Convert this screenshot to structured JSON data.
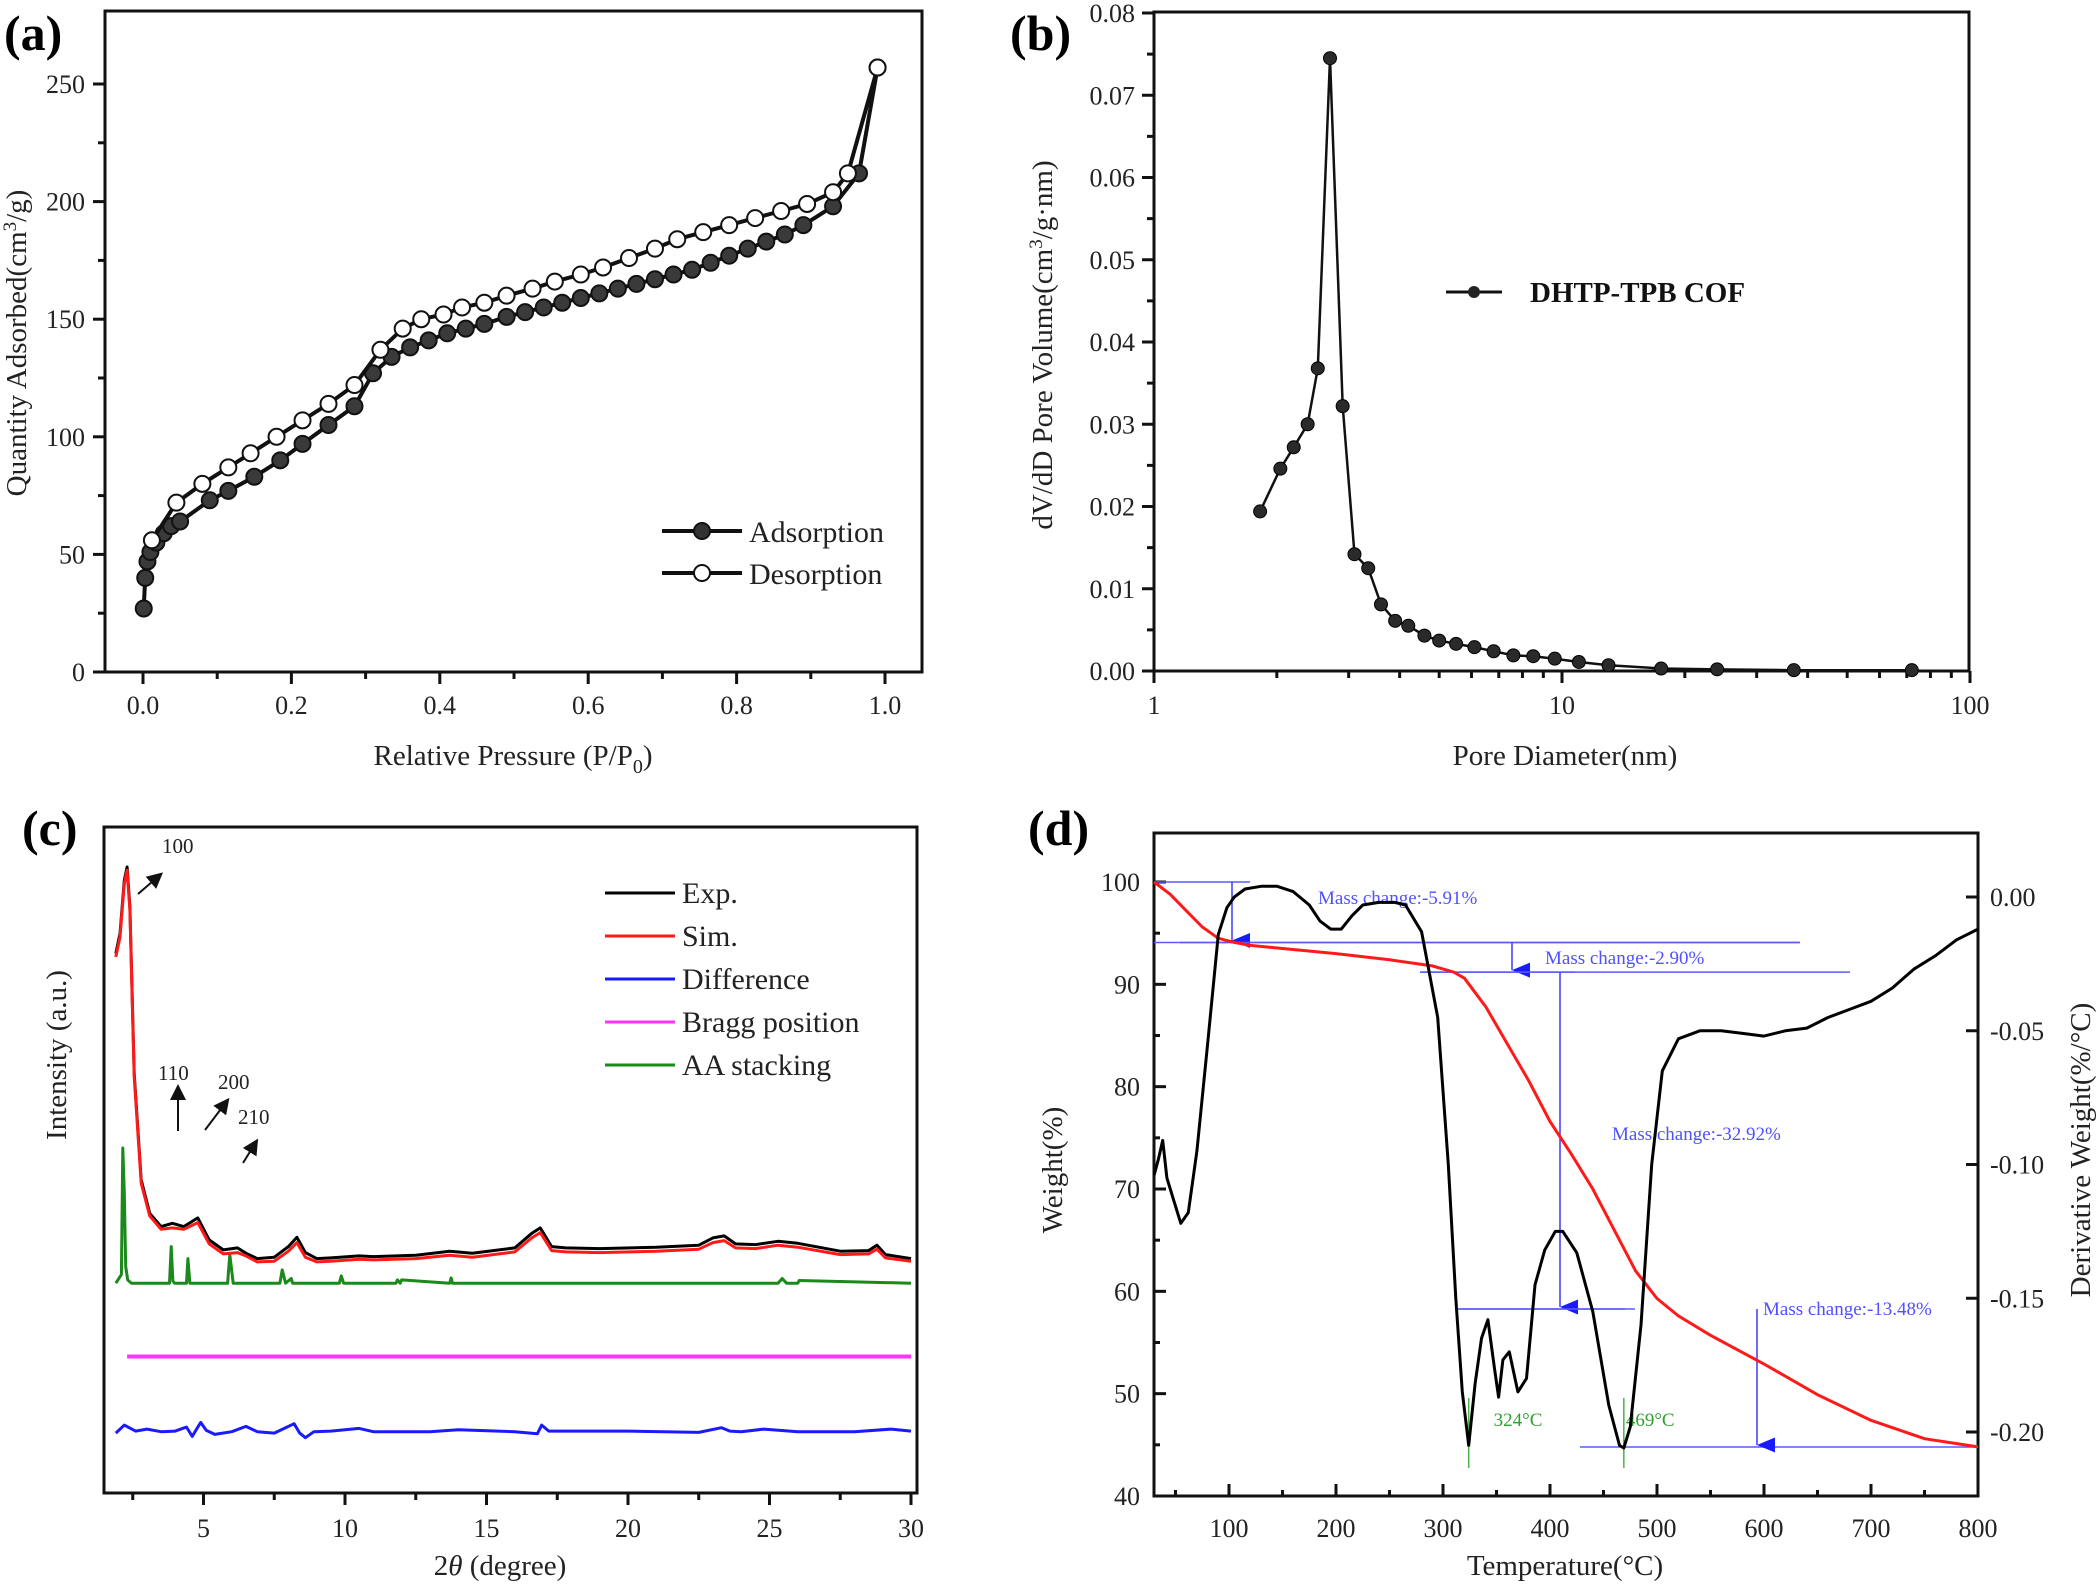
{
  "figure": {
    "panel_labels": [
      "(a)",
      "(b)",
      "(c)",
      "(d)"
    ]
  },
  "chart_data": [
    {
      "id": "a",
      "type": "line",
      "title": "",
      "xlabel": "Relative Pressure (P/P0)",
      "xlabel_main": "Relative Pressure (P/P",
      "xlabel_sub": "0",
      "xlabel_tail": ")",
      "ylabel": "Quantity Adsorbed(cm3/g)",
      "ylabel_main": "Quantity Adsorbed(cm",
      "ylabel_sup": "3",
      "ylabel_tail": "/g)",
      "xlim": [
        -0.065,
        1.045
      ],
      "ylim": [
        0,
        272
      ],
      "xticks": [
        0.0,
        0.2,
        0.4,
        0.6,
        0.8,
        1.0
      ],
      "xtick_labels": [
        "0.0",
        "0.2",
        "0.4",
        "0.6",
        "0.8",
        "1.0"
      ],
      "yticks": [
        0,
        50,
        100,
        150,
        200,
        250
      ],
      "ytick_labels": [
        "0",
        "50",
        "100",
        "150",
        "200",
        "250"
      ],
      "legend_position": "bottom-right",
      "series": [
        {
          "name": "Adsorption",
          "marker": "filled-circle",
          "x": [
            0.001,
            0.003,
            0.006,
            0.01,
            0.018,
            0.028,
            0.038,
            0.05,
            0.09,
            0.115,
            0.15,
            0.185,
            0.215,
            0.25,
            0.285,
            0.31,
            0.335,
            0.36,
            0.385,
            0.41,
            0.435,
            0.46,
            0.49,
            0.515,
            0.54,
            0.565,
            0.59,
            0.615,
            0.64,
            0.665,
            0.69,
            0.715,
            0.74,
            0.765,
            0.79,
            0.815,
            0.84,
            0.865,
            0.89,
            0.93,
            0.965,
            0.99
          ],
          "y": [
            27,
            40,
            47,
            51,
            55,
            59,
            62,
            64,
            73,
            77,
            83,
            90,
            97,
            105,
            113,
            127,
            134,
            138,
            141,
            144,
            146,
            148,
            151,
            153,
            155,
            157,
            159,
            161,
            163,
            165,
            167,
            169,
            171,
            174,
            177,
            180,
            183,
            186,
            190,
            198,
            212,
            257
          ]
        },
        {
          "name": "Desorption",
          "marker": "open-circle",
          "x": [
            0.99,
            0.95,
            0.93,
            0.895,
            0.86,
            0.825,
            0.79,
            0.755,
            0.72,
            0.69,
            0.655,
            0.62,
            0.59,
            0.555,
            0.525,
            0.49,
            0.46,
            0.43,
            0.405,
            0.375,
            0.35,
            0.32,
            0.285,
            0.25,
            0.215,
            0.18,
            0.145,
            0.115,
            0.08,
            0.045,
            0.012
          ],
          "y": [
            257,
            212,
            204,
            199,
            196,
            193,
            190,
            187,
            184,
            180,
            176,
            172,
            169,
            166,
            163,
            160,
            157,
            155,
            152,
            150,
            146,
            137,
            122,
            114,
            107,
            100,
            93,
            87,
            80,
            72,
            56
          ]
        }
      ]
    },
    {
      "id": "b",
      "type": "line",
      "title": "",
      "xlabel": "Pore Diameter(nm)",
      "ylabel": "dV/dD Pore Volume(cm3/g·nm)",
      "ylabel_main": "dV/dD Pore Volume(cm",
      "ylabel_sup": "3",
      "ylabel_tail": "/g·nm)",
      "xscale": "log",
      "xlim": [
        1,
        100
      ],
      "ylim": [
        0,
        0.08
      ],
      "xticks": [
        1,
        10,
        100
      ],
      "xtick_labels": [
        "1",
        "10",
        "100"
      ],
      "yticks": [
        0.0,
        0.01,
        0.02,
        0.03,
        0.04,
        0.05,
        0.06,
        0.07,
        0.08
      ],
      "ytick_labels": [
        "0.00",
        "0.01",
        "0.02",
        "0.03",
        "0.04",
        "0.05",
        "0.06",
        "0.07",
        "0.08"
      ],
      "legend_position": "center-right",
      "series": [
        {
          "name": "DHTP-TPB COF",
          "marker": "filled-circle",
          "x": [
            1.82,
            2.04,
            2.2,
            2.38,
            2.52,
            2.7,
            2.9,
            3.1,
            3.35,
            3.6,
            3.9,
            4.2,
            4.6,
            5.0,
            5.5,
            6.1,
            6.8,
            7.6,
            8.5,
            9.6,
            11.0,
            13.0,
            17.5,
            24.0,
            37.0,
            72.0
          ],
          "y": [
            0.0194,
            0.0246,
            0.0272,
            0.03,
            0.0368,
            0.0745,
            0.0322,
            0.0142,
            0.0125,
            0.0081,
            0.0061,
            0.0055,
            0.0043,
            0.0037,
            0.0033,
            0.0029,
            0.0024,
            0.0019,
            0.0018,
            0.0015,
            0.0011,
            0.0007,
            0.0003,
            0.0002,
            0.0001,
            0.0001
          ]
        }
      ]
    },
    {
      "id": "c",
      "type": "line",
      "title": "",
      "xlabel": "2θ (degree)",
      "xlabel_theta": "θ",
      "xlabel_pre": "2",
      "xlabel_post": " (degree)",
      "ylabel": "Intensity (a.u.)",
      "xlim": [
        1.5,
        31.2
      ],
      "ylim": [
        0,
        100
      ],
      "xticks": [
        5,
        10,
        15,
        20,
        25,
        30
      ],
      "xtick_labels": [
        "5",
        "10",
        "15",
        "20",
        "25",
        "30"
      ],
      "legend_position": "top-right",
      "peak_annotations": [
        {
          "label": "100",
          "x": 2.3
        },
        {
          "label": "110",
          "x": 3.9
        },
        {
          "label": "200",
          "x": 4.8
        },
        {
          "label": "210",
          "x": 6.4
        }
      ],
      "series": [
        {
          "name": "Exp.",
          "color": "#000000",
          "x": [
            1.9,
            2.05,
            2.2,
            2.3,
            2.4,
            2.55,
            2.8,
            3.1,
            3.5,
            3.9,
            4.3,
            4.8,
            5.2,
            5.7,
            6.2,
            6.5,
            6.9,
            7.5,
            8.0,
            8.3,
            8.6,
            9.0,
            9.5,
            10.5,
            11.0,
            12.5,
            13.7,
            14.5,
            16.0,
            16.6,
            16.9,
            17.3,
            17.8,
            19.0,
            21.0,
            22.5,
            23.0,
            23.4,
            23.8,
            24.5,
            25.3,
            26.0,
            27.5,
            28.5,
            28.8,
            29.1,
            30.0
          ],
          "y": [
            81,
            84,
            92,
            94,
            88,
            63,
            47,
            42,
            40,
            40.5,
            40,
            41.3,
            38,
            36.5,
            36.8,
            36,
            35.2,
            35.4,
            37,
            38.4,
            36.1,
            35.2,
            35.3,
            35.6,
            35.5,
            35.7,
            36.3,
            36,
            36.8,
            39,
            39.8,
            37,
            36.8,
            36.7,
            36.9,
            37.2,
            38.3,
            38.6,
            37.4,
            37.3,
            37.8,
            37.5,
            36.3,
            36.4,
            37.2,
            35.8,
            35.2
          ]
        },
        {
          "name": "Sim.",
          "color": "#ff1a1a",
          "x": [
            1.9,
            2.05,
            2.2,
            2.3,
            2.4,
            2.55,
            2.8,
            3.1,
            3.5,
            3.9,
            4.3,
            4.8,
            5.2,
            5.7,
            6.2,
            6.5,
            6.9,
            7.5,
            8.0,
            8.3,
            8.6,
            9.0,
            9.5,
            10.5,
            11.0,
            12.5,
            13.7,
            14.5,
            16.0,
            16.6,
            16.9,
            17.3,
            17.8,
            19.0,
            21.0,
            22.5,
            23.0,
            23.4,
            23.8,
            24.5,
            25.3,
            26.0,
            27.5,
            28.5,
            28.8,
            29.1,
            30.0
          ],
          "y": [
            80.5,
            83.5,
            91.5,
            93.5,
            87.5,
            62.5,
            46.5,
            41.6,
            39.6,
            39.8,
            39.6,
            40.6,
            37.4,
            35.9,
            36.1,
            35.6,
            34.7,
            34.8,
            36.3,
            37.6,
            35.4,
            34.7,
            34.8,
            35.1,
            35.0,
            35.2,
            35.7,
            35.4,
            36.2,
            38.3,
            39.1,
            36.4,
            36.2,
            36.1,
            36.3,
            36.6,
            37.6,
            37.9,
            36.8,
            36.7,
            37.2,
            36.9,
            35.8,
            35.9,
            36.6,
            35.3,
            34.8
          ]
        },
        {
          "name": "Difference",
          "color": "#1a1aff",
          "x": [
            1.9,
            2.2,
            2.6,
            3.0,
            3.5,
            4.0,
            4.4,
            4.6,
            4.9,
            5.1,
            5.4,
            6.0,
            6.5,
            6.9,
            7.5,
            8.2,
            8.4,
            8.6,
            8.9,
            9.5,
            10.5,
            11.0,
            13.0,
            14.0,
            16.0,
            16.8,
            16.95,
            17.2,
            18.0,
            20.0,
            22.5,
            23.3,
            23.6,
            24.0,
            24.8,
            26.0,
            28.0,
            29.3,
            30.0
          ],
          "y": [
            9.0,
            10.2,
            9.3,
            9.6,
            9.2,
            9.3,
            9.9,
            8.5,
            10.6,
            9.4,
            8.8,
            9.2,
            10.0,
            9.2,
            9.0,
            10.4,
            9.0,
            8.3,
            9.2,
            9.3,
            9.7,
            9.2,
            9.2,
            9.5,
            9.2,
            8.9,
            10.2,
            9.3,
            9.3,
            9.3,
            9.1,
            9.8,
            9.3,
            9.2,
            9.6,
            9.2,
            9.2,
            9.6,
            9.3
          ]
        },
        {
          "name": "Bragg position",
          "color": "#ff33ff",
          "x": [
            2.3,
            30.0
          ],
          "y": [
            20.5,
            20.5
          ]
        },
        {
          "name": "AA stacking",
          "color": "#1a8a1a",
          "x": [
            1.9,
            2.1,
            2.15,
            2.2,
            2.25,
            2.32,
            2.45,
            3.8,
            3.86,
            3.92,
            3.98,
            4.4,
            4.45,
            4.52,
            5.85,
            5.93,
            6.05,
            7.7,
            7.78,
            7.9,
            8.1,
            8.15,
            9.8,
            9.87,
            9.95,
            11.8,
            11.85,
            11.95,
            12.0,
            13.7,
            13.75,
            13.8,
            25.3,
            25.45,
            25.6,
            26.0,
            26.05,
            30.0
          ],
          "y": [
            31.5,
            32.8,
            51.8,
            45,
            34,
            32,
            31.5,
            31.5,
            37,
            31.8,
            31.5,
            31.5,
            35.2,
            31.5,
            31.5,
            35.8,
            31.5,
            31.5,
            33.5,
            31.5,
            32.2,
            31.5,
            31.5,
            32.6,
            31.5,
            31.5,
            32,
            31.5,
            32,
            31.5,
            32.3,
            31.5,
            31.5,
            32.2,
            31.5,
            31.5,
            31.9,
            31.5
          ]
        }
      ]
    },
    {
      "id": "d",
      "type": "line",
      "title": "",
      "xlabel": "Temperature(°C)",
      "ylabel_left": "Weight(%)",
      "ylabel_right": "Derivative Weight(%/°C)",
      "xlim": [
        30,
        800
      ],
      "ylim_left": [
        40,
        105
      ],
      "ylim_right": [
        -0.222,
        0.012
      ],
      "xticks": [
        100,
        200,
        300,
        400,
        500,
        600,
        700,
        800
      ],
      "xtick_labels": [
        "100",
        "200",
        "300",
        "400",
        "500",
        "600",
        "700",
        "800"
      ],
      "yticks_left": [
        40,
        50,
        60,
        70,
        80,
        90,
        100
      ],
      "ytick_labels_left": [
        "40",
        "50",
        "60",
        "70",
        "80",
        "90",
        "100"
      ],
      "yticks_right": [
        0.0,
        -0.05,
        -0.1,
        -0.15,
        -0.2
      ],
      "ytick_labels_right": [
        "0.00",
        "-0.05",
        "-0.10",
        "-0.15",
        "-0.20"
      ],
      "series": [
        {
          "name": "Weight",
          "axis": "left",
          "color": "#ff1a1a",
          "x": [
            30,
            45,
            60,
            75,
            90,
            105,
            120,
            150,
            200,
            250,
            290,
            310,
            320,
            340,
            360,
            380,
            400,
            420,
            440,
            460,
            480,
            500,
            520,
            550,
            600,
            650,
            700,
            750,
            800
          ],
          "y": [
            100,
            98.8,
            97.2,
            95.6,
            94.5,
            94.1,
            93.8,
            93.5,
            93.0,
            92.4,
            91.8,
            91.2,
            90.6,
            87.8,
            84.2,
            80.6,
            76.6,
            73.4,
            70.0,
            66.0,
            62.0,
            59.3,
            57.6,
            55.7,
            52.9,
            49.9,
            47.4,
            45.6,
            44.8
          ]
        },
        {
          "name": "Derivative Weight",
          "axis": "right",
          "color": "#000000",
          "x": [
            30,
            34,
            38,
            42,
            48,
            55,
            62,
            70,
            80,
            90,
            98,
            105,
            115,
            130,
            145,
            160,
            175,
            185,
            195,
            205,
            215,
            225,
            240,
            255,
            265,
            280,
            295,
            305,
            312,
            318,
            324,
            330,
            336,
            342,
            348,
            352,
            356,
            362,
            370,
            378,
            386,
            395,
            405,
            412,
            425,
            440,
            455,
            465,
            469,
            475,
            485,
            495,
            505,
            520,
            540,
            560,
            580,
            600,
            620,
            640,
            660,
            680,
            700,
            720,
            740,
            760,
            780,
            800
          ],
          "y": [
            -0.104,
            -0.098,
            -0.091,
            -0.105,
            -0.113,
            -0.122,
            -0.118,
            -0.095,
            -0.055,
            -0.014,
            -0.004,
            0.0,
            0.003,
            0.004,
            0.004,
            0.002,
            -0.003,
            -0.009,
            -0.012,
            -0.012,
            -0.007,
            -0.003,
            -0.002,
            -0.002,
            -0.003,
            -0.013,
            -0.045,
            -0.1,
            -0.15,
            -0.185,
            -0.205,
            -0.182,
            -0.165,
            -0.158,
            -0.176,
            -0.187,
            -0.173,
            -0.17,
            -0.185,
            -0.18,
            -0.145,
            -0.132,
            -0.125,
            -0.125,
            -0.133,
            -0.155,
            -0.19,
            -0.205,
            -0.206,
            -0.198,
            -0.16,
            -0.1,
            -0.065,
            -0.053,
            -0.05,
            -0.05,
            -0.051,
            -0.052,
            -0.05,
            -0.049,
            -0.045,
            -0.042,
            -0.039,
            -0.034,
            -0.027,
            -0.022,
            -0.016,
            -0.012
          ]
        }
      ],
      "annotations": [
        {
          "text": "Mass change:-5.91%",
          "from": 100,
          "to": 94.09
        },
        {
          "text": "Mass change:-2.90%",
          "from": 94.09,
          "to": 91.19
        },
        {
          "text": "Mass change:-32.92%",
          "from": 91.19,
          "to": 58.27
        },
        {
          "text": "Mass change:-13.48%",
          "from": 58.27,
          "to": 44.79
        }
      ],
      "peak_labels": [
        {
          "text": "324°C",
          "x": 324
        },
        {
          "text": "469°C",
          "x": 469
        }
      ]
    }
  ]
}
